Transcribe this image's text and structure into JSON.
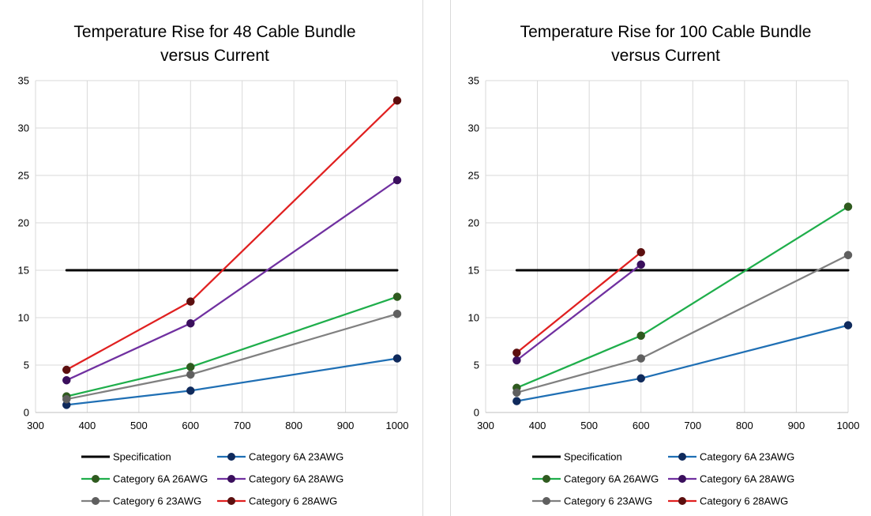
{
  "colors": {
    "Specification": "#000000",
    "Category 6A 23AWG": "#1f6fb4",
    "Category 6A 26AWG": "#1fae4b",
    "Category 6A 28AWG": "#7030a0",
    "Category 6 23AWG": "#808080",
    "Category 6 28AWG": "#e02020"
  },
  "marker_colors": {
    "Category 6A 23AWG": "#0f2a5c",
    "Category 6A 26AWG": "#2f5a1f",
    "Category 6A 28AWG": "#3a0f5c",
    "Category 6 23AWG": "#5f5f5f",
    "Category 6 28AWG": "#5c0f0f"
  },
  "chart_data": [
    {
      "type": "line",
      "title": "Temperature Rise for 48 Cable Bundle versus Current",
      "title_lines": [
        "Temperature  Rise for 48 Cable Bundle",
        "versus Current"
      ],
      "xlabel": "",
      "ylabel": "",
      "xlim": [
        300,
        1000
      ],
      "ylim": [
        0,
        35
      ],
      "x_ticks": [
        300,
        400,
        500,
        600,
        700,
        800,
        900,
        1000
      ],
      "y_ticks": [
        0,
        5,
        10,
        15,
        20,
        25,
        30,
        35
      ],
      "grid": true,
      "legend_position": "bottom",
      "series": [
        {
          "name": "Specification",
          "x": [
            360,
            1000
          ],
          "y": [
            15,
            15
          ],
          "markers": false
        },
        {
          "name": "Category 6A 23AWG",
          "x": [
            360,
            600,
            1000
          ],
          "y": [
            0.8,
            2.3,
            5.7
          ],
          "markers": true
        },
        {
          "name": "Category 6A 26AWG",
          "x": [
            360,
            600,
            1000
          ],
          "y": [
            1.7,
            4.8,
            12.2
          ],
          "markers": true
        },
        {
          "name": "Category 6A 28AWG",
          "x": [
            360,
            600,
            1000
          ],
          "y": [
            3.4,
            9.4,
            24.5
          ],
          "markers": true
        },
        {
          "name": "Category 6 23AWG",
          "x": [
            360,
            600,
            1000
          ],
          "y": [
            1.4,
            4.0,
            10.4
          ],
          "markers": true
        },
        {
          "name": "Category 6 28AWG",
          "x": [
            360,
            600,
            1000
          ],
          "y": [
            4.5,
            11.7,
            32.9
          ],
          "markers": true
        }
      ]
    },
    {
      "type": "line",
      "title": "Temperature Rise for 100 Cable Bundle versus Current",
      "title_lines": [
        "Temperature  Rise for 100 Cable Bundle",
        "versus Current"
      ],
      "xlabel": "",
      "ylabel": "",
      "xlim": [
        300,
        1000
      ],
      "ylim": [
        0,
        35
      ],
      "x_ticks": [
        300,
        400,
        500,
        600,
        700,
        800,
        900,
        1000
      ],
      "y_ticks": [
        0,
        5,
        10,
        15,
        20,
        25,
        30,
        35
      ],
      "grid": true,
      "legend_position": "bottom",
      "series": [
        {
          "name": "Specification",
          "x": [
            360,
            1000
          ],
          "y": [
            15,
            15
          ],
          "markers": false
        },
        {
          "name": "Category 6A 23AWG",
          "x": [
            360,
            600,
            1000
          ],
          "y": [
            1.2,
            3.6,
            9.2
          ],
          "markers": true
        },
        {
          "name": "Category 6A 26AWG",
          "x": [
            360,
            600,
            1000
          ],
          "y": [
            2.6,
            8.1,
            21.7
          ],
          "markers": true
        },
        {
          "name": "Category 6A 28AWG",
          "x": [
            360,
            600
          ],
          "y": [
            5.5,
            15.6
          ],
          "markers": true
        },
        {
          "name": "Category 6 23AWG",
          "x": [
            360,
            600,
            1000
          ],
          "y": [
            2.1,
            5.7,
            16.6
          ],
          "markers": true
        },
        {
          "name": "Category 6 28AWG",
          "x": [
            360,
            600
          ],
          "y": [
            6.3,
            16.9
          ],
          "markers": true
        }
      ]
    }
  ]
}
